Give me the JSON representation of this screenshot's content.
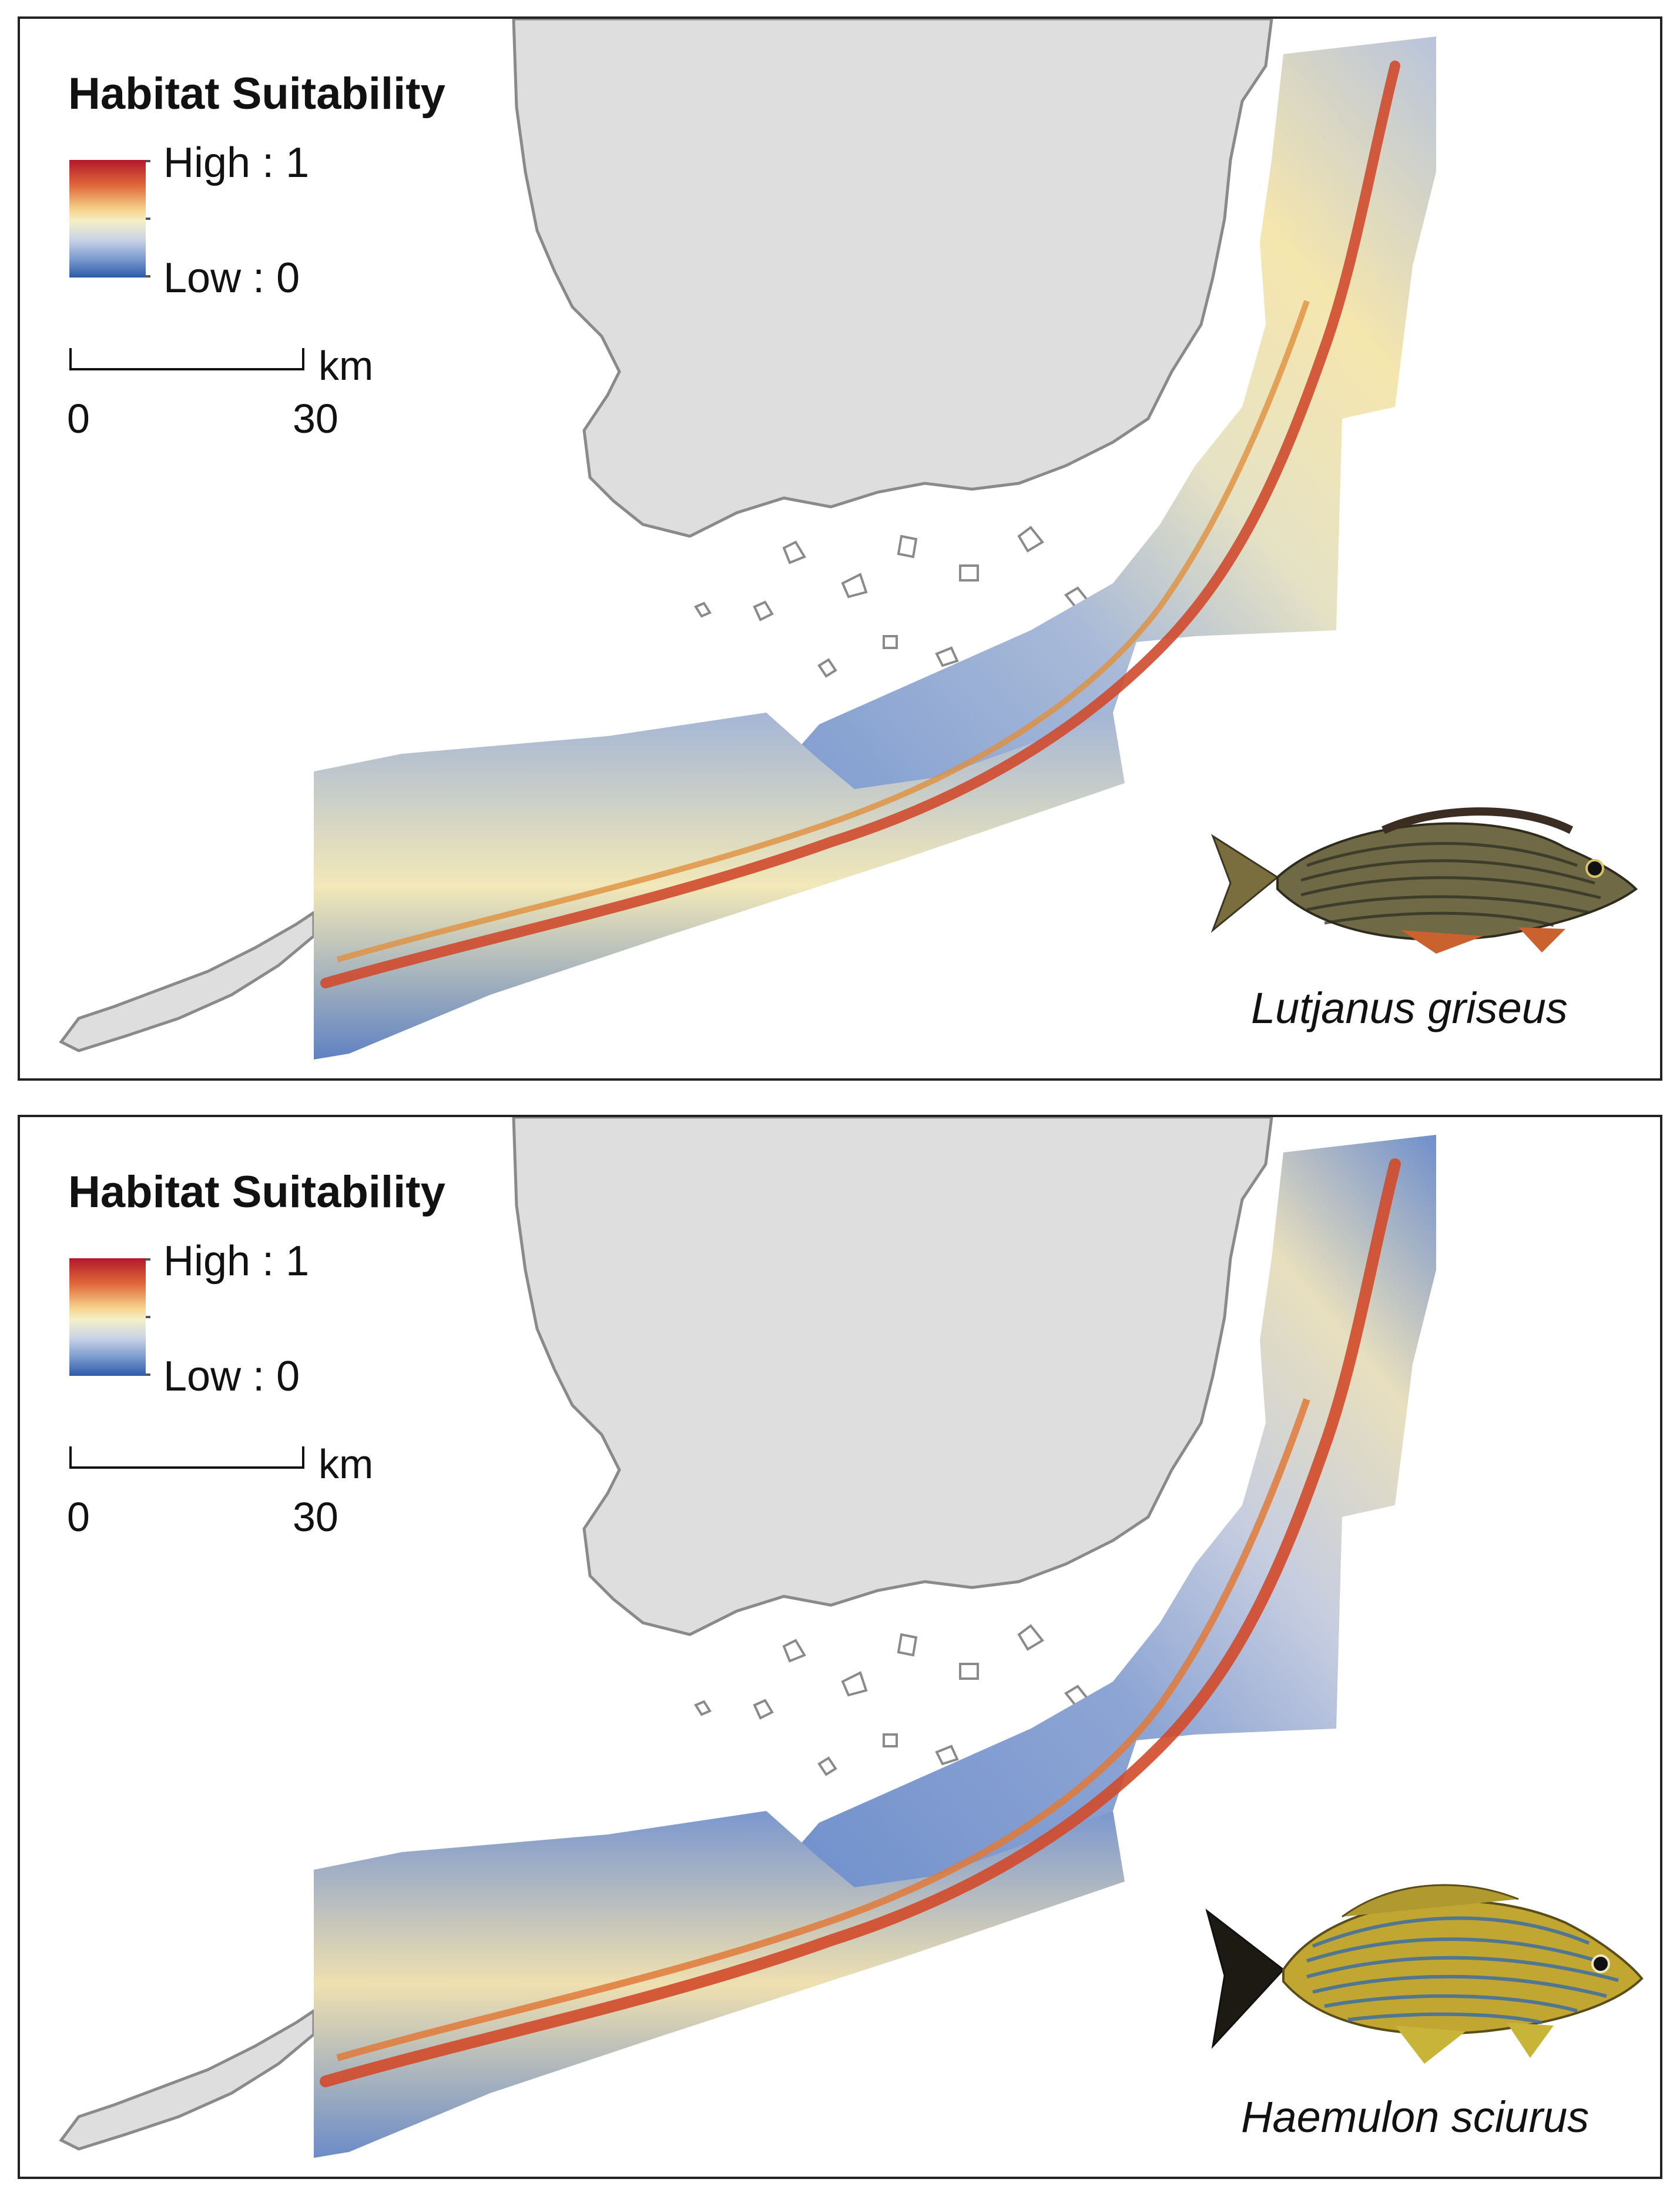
{
  "legend": {
    "title": "Habitat Suitability",
    "high_label": "High : 1",
    "low_label": "Low : 0",
    "ramp_colors": [
      "#b2182b",
      "#e0693a",
      "#f5d28a",
      "#f5f0c8",
      "#c9d3e6",
      "#7c9ccf",
      "#2d5aa8"
    ]
  },
  "scale": {
    "unit": "km",
    "min_label": "0",
    "max_label": "30"
  },
  "panels": [
    {
      "species": "Lutjanus griseus",
      "fish_colors": {
        "body": "#6f6a45",
        "stripes": "#2a2a22",
        "fins": "#c9622f"
      }
    },
    {
      "species": "Haemulon sciurus",
      "fish_colors": {
        "body": "#c2a632",
        "stripes": "#3d6fa0",
        "fins": "#c9b43a"
      }
    }
  ],
  "colors": {
    "land": "#dedede",
    "coast": "#8a8a8a",
    "frame": "#222222"
  }
}
